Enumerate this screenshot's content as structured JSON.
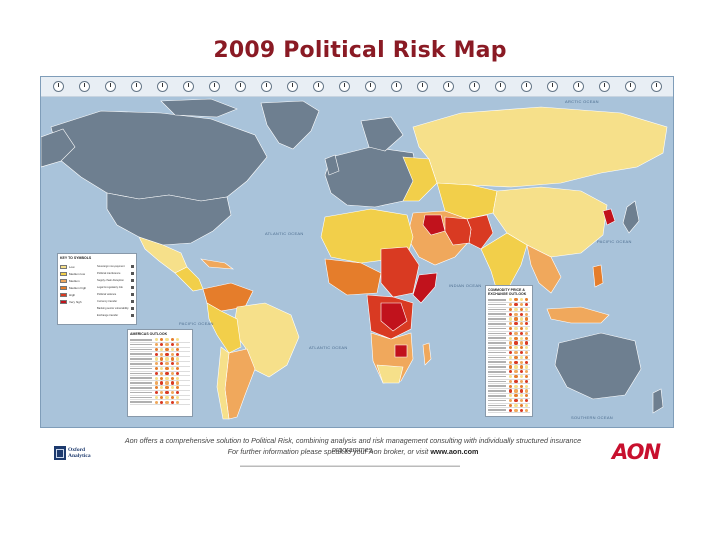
{
  "title": "2009 Political Risk Map",
  "colors": {
    "ocean": "#a9c3da",
    "not_rated": "#6e7f90",
    "low": "#f6e08a",
    "medium_low": "#f2cf4a",
    "medium": "#f0a85c",
    "medium_high": "#e57d2b",
    "high": "#d93a22",
    "very_high": "#c1121c",
    "accent": "#8a1a24",
    "aon_red": "#c8102e",
    "oxford_blue": "#1d3a6e"
  },
  "map": {
    "oceans": [
      "Arctic Ocean",
      "Atlantic Ocean",
      "Pacific Ocean",
      "Indian Ocean",
      "Atlantic Ocean",
      "Pacific Ocean",
      "Southern Ocean"
    ],
    "regions": [
      "Canada",
      "United States",
      "Greenland",
      "Russia",
      "China",
      "Brazil",
      "Australia",
      "Africa",
      "Middle East",
      "Europe",
      "Mexico",
      "India",
      "Argentina",
      "Southeast Asia"
    ]
  },
  "legend": {
    "title": "Key to symbols",
    "levels": [
      "Low",
      "Medium low",
      "Medium",
      "Medium high",
      "High",
      "Very high"
    ],
    "symbols": [
      "Sovereign non-payment",
      "Political interference",
      "Supply chain disruption",
      "Legal & regulatory risk",
      "Political violence",
      "Currency transfer",
      "Banking sector vulnerability",
      "Exchange transfer"
    ]
  },
  "panels": {
    "americas": "Americas outlook",
    "asia": "Commodity price & exchange outlook"
  },
  "footer": {
    "line1": "Aon offers a comprehensive solution to Political Risk, combining analysis and risk management consulting with individually structured insurance programmes.",
    "line2_prefix": "For further information please speak to your Aon broker, or visit ",
    "line2_url": "www.aon.com"
  },
  "logos": {
    "oxford_line1": "Oxford",
    "oxford_line2": "Analytica",
    "aon": "AON"
  }
}
